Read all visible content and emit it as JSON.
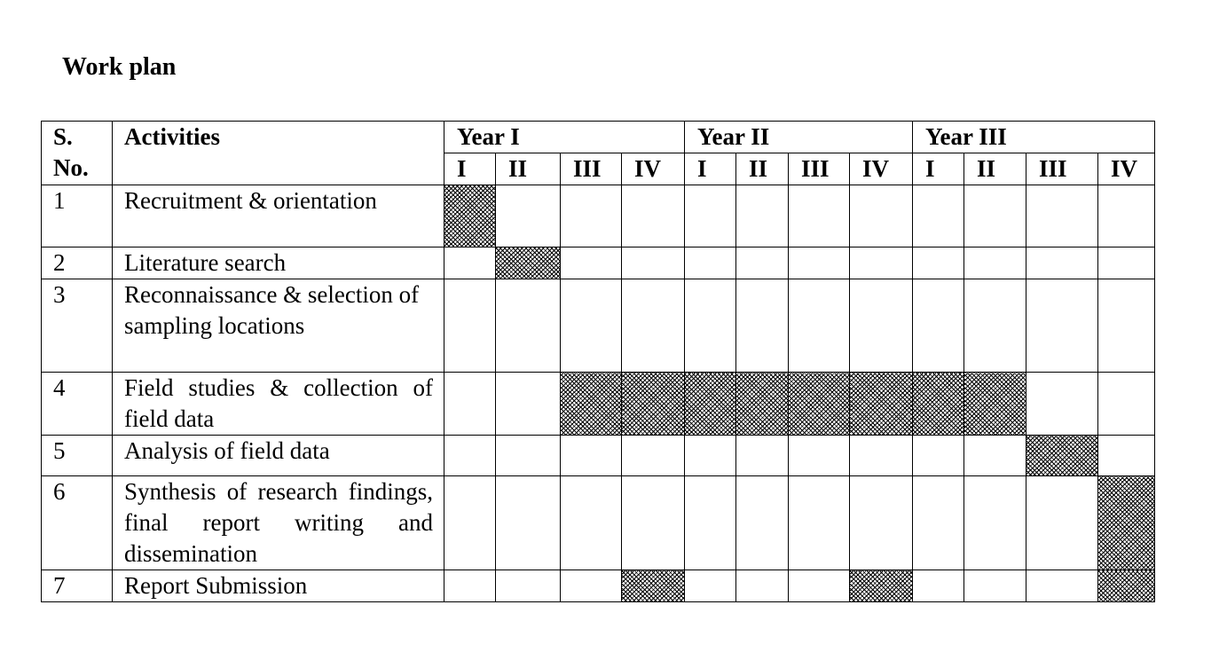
{
  "title": "Work plan",
  "table": {
    "col_sno": "S. No.",
    "col_sno_line1": "S.",
    "col_sno_line2": "No.",
    "col_activities": "Activities",
    "years": [
      "Year I",
      "Year II",
      "Year III"
    ],
    "quarters": [
      "I",
      "II",
      "III",
      "IV"
    ],
    "rows": [
      {
        "no": "1",
        "activity": "Recruitment & orientation",
        "active": [
          1,
          0,
          0,
          0,
          0,
          0,
          0,
          0,
          0,
          0,
          0,
          0
        ]
      },
      {
        "no": "2",
        "activity": "Literature search",
        "active": [
          0,
          1,
          0,
          0,
          0,
          0,
          0,
          0,
          0,
          0,
          0,
          0
        ]
      },
      {
        "no": "3",
        "activity": "Reconnaissance & selection of sampling locations",
        "active": [
          0,
          0,
          0,
          0,
          0,
          0,
          0,
          0,
          0,
          0,
          0,
          0
        ]
      },
      {
        "no": "4",
        "activity": "Field studies & collection of field data",
        "active": [
          0,
          0,
          1,
          1,
          1,
          1,
          1,
          1,
          1,
          1,
          0,
          0
        ]
      },
      {
        "no": "5",
        "activity": "Analysis of field data",
        "active": [
          0,
          0,
          0,
          0,
          0,
          0,
          0,
          0,
          0,
          0,
          1,
          0
        ]
      },
      {
        "no": "6",
        "activity": "Synthesis of research findings, final report writing and dissemination",
        "active": [
          0,
          0,
          0,
          0,
          0,
          0,
          0,
          0,
          0,
          0,
          0,
          1
        ]
      },
      {
        "no": "7",
        "activity": "Report Submission",
        "active": [
          0,
          0,
          0,
          1,
          0,
          0,
          0,
          1,
          0,
          0,
          0,
          1
        ]
      }
    ]
  },
  "colors": {
    "border": "#000000",
    "hatch": "#000000",
    "background": "#ffffff"
  }
}
